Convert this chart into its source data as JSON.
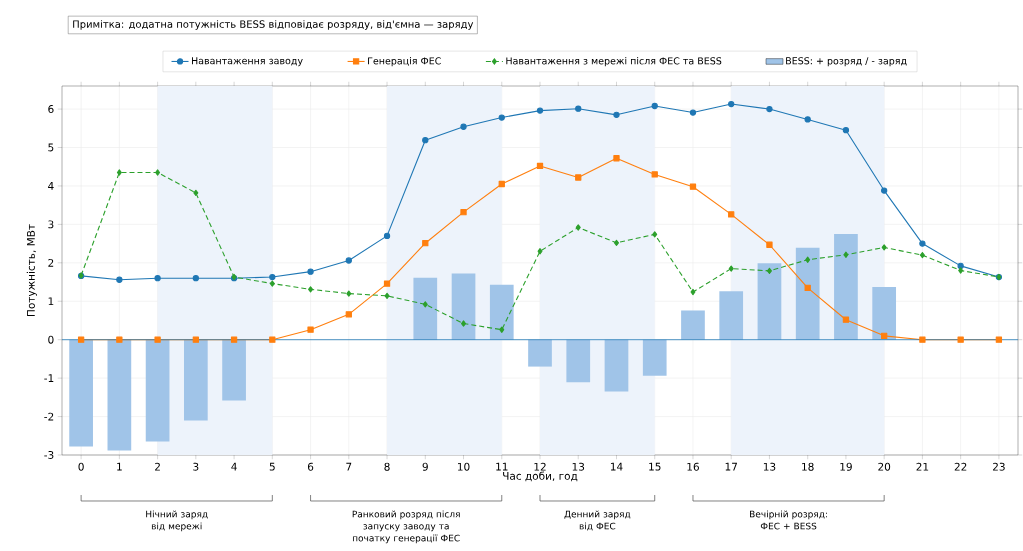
{
  "chart_data": {
    "type": "line",
    "ylabel": "Потужність, МВт",
    "xlabel": "Час доби, год",
    "annotations": [
      "Примітка: додатна потужність BESS відповідає розряду, від'ємна — заряду",
      "Нічний заряд від мережі",
      "Ранковий розряд після запуску заводу та початку генерації ФЕС",
      "Денний заряд від ФЕС",
      "Вечірній розряд: ФЕС + BESS"
    ],
    "categories": [
      "0",
      "1",
      "2",
      "3",
      "4",
      "5",
      "6",
      "7",
      "8",
      "9",
      "10",
      "11",
      "12",
      "13",
      "14",
      "15",
      "16",
      "17",
      "13",
      "18",
      "19",
      "20",
      "21",
      "22",
      "23"
    ],
    "series": [
      {
        "name": "Навантаження заводу",
        "color": "#1f77b4",
        "marker": "circle",
        "line_style": "solid",
        "values": [
          1.66,
          1.56,
          1.6,
          1.6,
          1.6,
          1.63,
          1.77,
          2.06,
          2.7,
          5.19,
          5.54,
          5.78,
          5.96,
          6.01,
          5.85,
          6.08,
          5.91,
          6.13,
          6.0,
          5.73,
          5.45,
          3.88,
          2.5,
          1.92,
          1.63
        ]
      },
      {
        "name": "Генерація ФЕС",
        "color": "#ff7f0e",
        "marker": "square",
        "line_style": "solid",
        "values": [
          0,
          0,
          0,
          0,
          0,
          0,
          0.26,
          0.66,
          1.46,
          2.51,
          3.32,
          4.05,
          4.52,
          4.22,
          4.72,
          4.3,
          3.98,
          3.26,
          2.47,
          1.35,
          0.52,
          0.1,
          0,
          0,
          0
        ]
      },
      {
        "name": "Навантаження з мережі після ФЕС та BESS",
        "color": "#2ca02c",
        "marker": "diamond",
        "line_style": "dashed",
        "values": [
          1.67,
          4.35,
          4.35,
          3.82,
          1.63,
          1.46,
          1.31,
          1.2,
          1.14,
          0.92,
          0.42,
          0.26,
          2.3,
          2.92,
          2.52,
          2.74,
          1.24,
          1.85,
          1.79,
          2.08,
          2.21,
          2.4,
          2.2,
          1.8,
          1.63
        ]
      },
      {
        "name": "BESS: + розряд / - заряд",
        "type": "bar",
        "color": "#a0c4e8",
        "values": [
          -2.78,
          -2.88,
          -2.65,
          -2.1,
          -1.58,
          null,
          null,
          null,
          null,
          1.61,
          1.72,
          1.43,
          -0.7,
          -1.11,
          -1.35,
          -0.94,
          0.76,
          1.26,
          1.99,
          2.39,
          2.75,
          1.37,
          null,
          null,
          null
        ]
      }
    ],
    "ylim": [
      -3,
      6.6
    ],
    "yticks": [
      -3,
      -2,
      -1,
      0,
      1,
      2,
      3,
      4,
      5,
      6
    ],
    "bands": [
      {
        "axis": "x",
        "from": "2",
        "to": "5",
        "color": "#edf3fb"
      },
      {
        "axis": "x",
        "from": "8",
        "to": "11",
        "color": "#edf3fb"
      },
      {
        "axis": "x",
        "from": "12",
        "to": "15",
        "color": "#edf3fb"
      },
      {
        "axis": "x",
        "from": "17",
        "to": "20",
        "color": "#edf3fb"
      }
    ],
    "ref_lines": [
      {
        "axis": "y",
        "value": 0,
        "color": "#1f77b4"
      }
    ],
    "grid": true,
    "legend": "top"
  }
}
